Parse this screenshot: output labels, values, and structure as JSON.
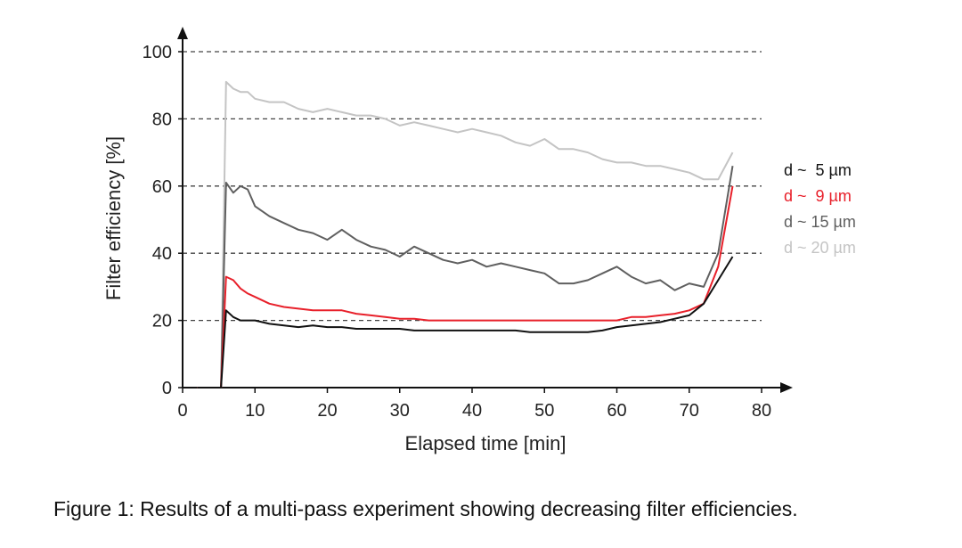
{
  "caption": "Figure 1: Results of a multi-pass experiment showing decreasing filter efficiencies.",
  "chart_data": {
    "type": "line",
    "xlabel": "Elapsed time [min]",
    "ylabel": "Filter efficiency [%]",
    "xlim": [
      0,
      80
    ],
    "ylim": [
      0,
      100
    ],
    "xticks": [
      "0",
      "10",
      "20",
      "30",
      "40",
      "50",
      "60",
      "70",
      "80"
    ],
    "yticks": [
      "0",
      "20",
      "40",
      "60",
      "80",
      "100"
    ],
    "grid": "horizontal dashed at 20, 40, 60, 80, 100",
    "legend_placement": "right",
    "series": [
      {
        "name": "d ~  5 µm",
        "color": "#111111",
        "x": [
          2,
          5.3,
          6,
          7,
          8,
          9,
          10,
          12,
          14,
          16,
          18,
          20,
          22,
          24,
          26,
          28,
          30,
          32,
          34,
          36,
          38,
          40,
          42,
          44,
          46,
          48,
          50,
          52,
          54,
          56,
          58,
          60,
          62,
          64,
          66,
          68,
          70,
          72,
          74,
          76
        ],
        "y": [
          0,
          0,
          23,
          21,
          20,
          20,
          20,
          19,
          18.5,
          18,
          18.5,
          18,
          18,
          17.5,
          17.5,
          17.5,
          17.5,
          17,
          17,
          17,
          17,
          17,
          17,
          17,
          17,
          16.5,
          16.5,
          16.5,
          16.5,
          16.5,
          17,
          18,
          18.5,
          19,
          19.5,
          20.5,
          21.5,
          25,
          32,
          39
        ]
      },
      {
        "name": "d ~  9 µm",
        "color": "#e8202a",
        "x": [
          2,
          5.3,
          6,
          7,
          8,
          9,
          10,
          12,
          14,
          16,
          18,
          20,
          22,
          24,
          26,
          28,
          30,
          32,
          34,
          36,
          38,
          40,
          42,
          44,
          46,
          48,
          50,
          52,
          54,
          56,
          58,
          60,
          62,
          64,
          66,
          68,
          70,
          72,
          74,
          76
        ],
        "y": [
          0,
          0,
          33,
          32,
          29.5,
          28,
          27,
          25,
          24,
          23.5,
          23,
          23,
          23,
          22,
          21.5,
          21,
          20.5,
          20.5,
          20,
          20,
          20,
          20,
          20,
          20,
          20,
          20,
          20,
          20,
          20,
          20,
          20,
          20,
          21,
          21,
          21.5,
          22,
          23,
          25,
          36,
          60
        ]
      },
      {
        "name": "d ~ 15 µm",
        "color": "#5f5f5f",
        "x": [
          2,
          5.3,
          6,
          7,
          8,
          9,
          10,
          12,
          14,
          16,
          18,
          20,
          22,
          24,
          26,
          28,
          30,
          32,
          34,
          36,
          38,
          40,
          42,
          44,
          46,
          48,
          50,
          52,
          54,
          56,
          58,
          60,
          62,
          64,
          66,
          68,
          70,
          72,
          74,
          76
        ],
        "y": [
          0,
          0,
          61,
          58,
          60,
          59,
          54,
          51,
          49,
          47,
          46,
          44,
          47,
          44,
          42,
          41,
          39,
          42,
          40,
          38,
          37,
          38,
          36,
          37,
          36,
          35,
          34,
          31,
          31,
          32,
          34,
          36,
          33,
          31,
          32,
          29,
          31,
          30,
          40,
          66
        ]
      },
      {
        "name": "d ~ 20 µm",
        "color": "#c4c4c4",
        "x": [
          2,
          5.3,
          6,
          7,
          8,
          9,
          10,
          12,
          14,
          16,
          18,
          20,
          22,
          24,
          26,
          28,
          30,
          32,
          34,
          36,
          38,
          40,
          42,
          44,
          46,
          48,
          50,
          52,
          54,
          56,
          58,
          60,
          62,
          64,
          66,
          68,
          70,
          72,
          74,
          76
        ],
        "y": [
          0,
          0,
          91,
          89,
          88,
          88,
          86,
          85,
          85,
          83,
          82,
          83,
          82,
          81,
          81,
          80,
          78,
          79,
          78,
          77,
          76,
          77,
          76,
          75,
          73,
          72,
          74,
          71,
          71,
          70,
          68,
          67,
          67,
          66,
          66,
          65,
          64,
          62,
          62,
          70
        ]
      }
    ]
  }
}
